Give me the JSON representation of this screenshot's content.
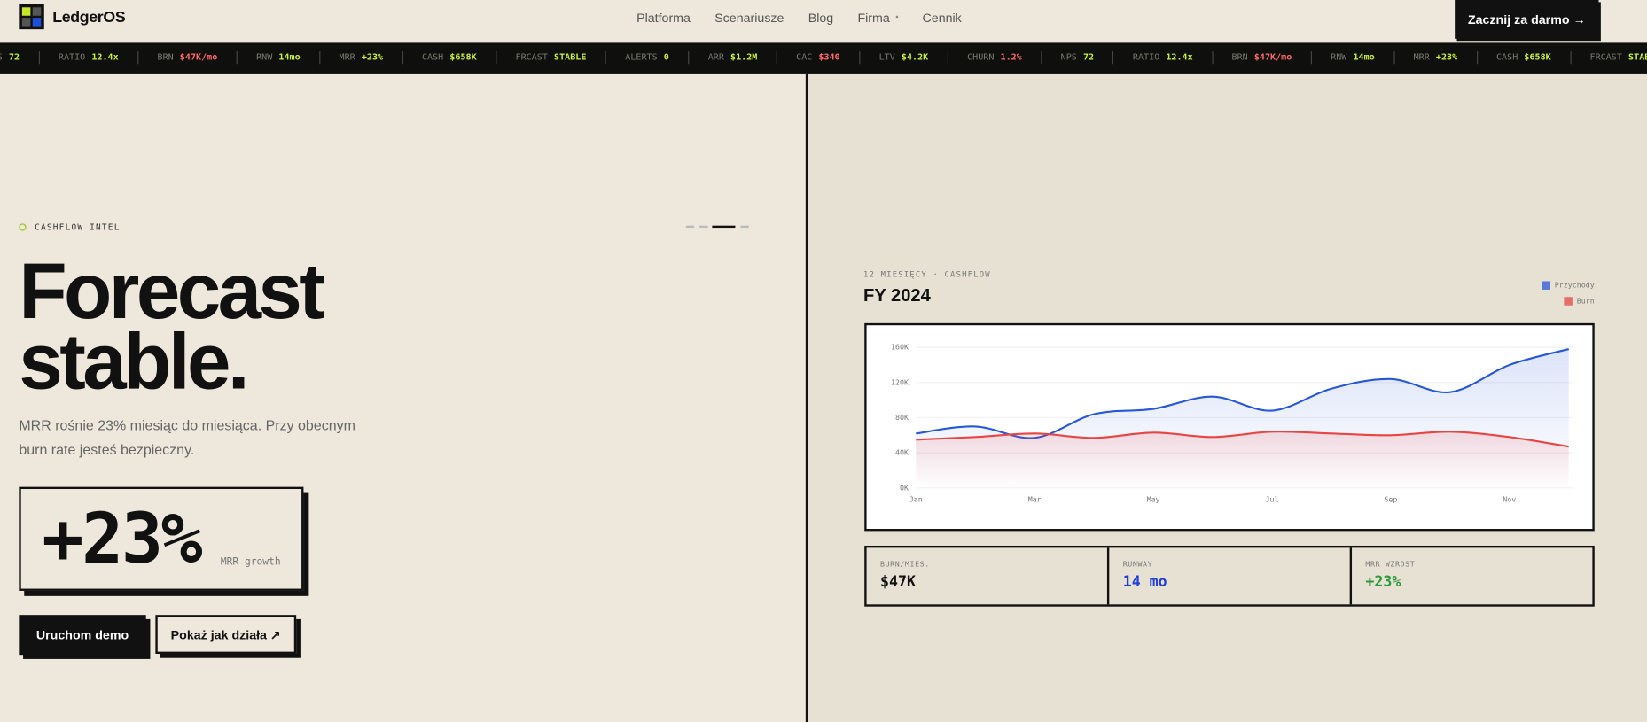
{
  "nav": {
    "brand": "LedgerOS",
    "links": [
      "Platforma",
      "Scenariusze",
      "Blog",
      "Firma",
      "Cennik"
    ],
    "cta": "Zacznij za darmo →"
  },
  "ticker": [
    {
      "label": "RATIO",
      "value": "12.4x",
      "color": "#c8f03c"
    },
    {
      "label": "BRN",
      "value": "$47K/mo",
      "color": "#ff6b6b"
    },
    {
      "label": "RNW",
      "value": "14mo",
      "color": "#c8f03c"
    },
    {
      "label": "MRR",
      "value": "+23%",
      "color": "#c8f03c"
    },
    {
      "label": "CASH",
      "value": "$658K",
      "color": "#c8f03c"
    },
    {
      "label": "FRCAST",
      "value": "STABLE",
      "color": "#c8f03c"
    },
    {
      "label": "ALERTS",
      "value": "0",
      "color": "#c8f03c"
    },
    {
      "label": "ARR",
      "value": "$1.2M",
      "color": "#c8f03c"
    },
    {
      "label": "CAC",
      "value": "$340",
      "color": "#ff6b6b"
    },
    {
      "label": "LTV",
      "value": "$4.2K",
      "color": "#c8f03c"
    },
    {
      "label": "CHURN",
      "value": "1.2%",
      "color": "#ff6b6b"
    },
    {
      "label": "NPS",
      "value": "72",
      "color": "#c8f03c"
    }
  ],
  "hero": {
    "eyebrow": "CASHFLOW INTEL",
    "title_lines": [
      "Forecast",
      "stable."
    ],
    "lead": "MRR rośnie 23% miesiąc do miesiąca. Przy obecnym burn rate jesteś bezpieczny.",
    "stat": {
      "value": "+23%",
      "label": "MRR growth"
    },
    "buttons": [
      "Uruchom demo",
      "Pokaż jak działa ↗"
    ]
  },
  "panel": {
    "eyebrow": "12 MIESIĘCY · CASHFLOW",
    "chart": {
      "type": "line",
      "title": "FY 2024",
      "categories": [
        "Jan",
        null,
        "Mar",
        null,
        "May",
        null,
        "Jul",
        null,
        "Sep",
        null,
        "Nov",
        null
      ],
      "series": [
        {
          "name": "Przychody",
          "color": "#2858d8",
          "values": [
            62,
            70,
            57,
            84,
            90,
            104,
            88,
            113,
            124,
            109,
            140,
            158
          ]
        },
        {
          "name": "Burn",
          "color": "#e84545",
          "values": [
            55,
            58,
            62,
            57,
            63,
            58,
            64,
            62,
            60,
            64,
            58,
            47
          ]
        }
      ],
      "ylim": [
        0,
        160
      ],
      "yticks": [
        {
          "value": 0,
          "label": "0K"
        },
        {
          "value": 40,
          "label": "40K"
        },
        {
          "value": 80,
          "label": "80K"
        },
        {
          "value": 120,
          "label": "120K"
        },
        {
          "value": 160,
          "label": "160K"
        }
      ],
      "grid": true
    },
    "stats": [
      {
        "label": "BURN/MIES.",
        "value": "$47K",
        "color": "#111111"
      },
      {
        "label": "RUNWAY",
        "value": "14 mo",
        "color": "#1e40d8"
      },
      {
        "label": "MRR WZROST",
        "value": "+23%",
        "color": "#2a9a3a"
      }
    ]
  }
}
